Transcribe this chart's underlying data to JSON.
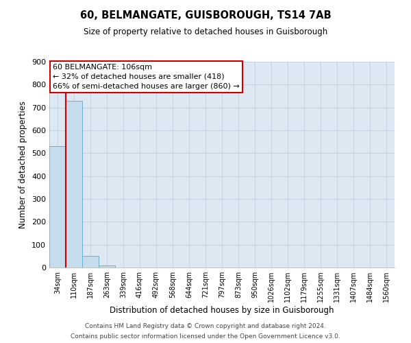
{
  "title": "60, BELMANGATE, GUISBOROUGH, TS14 7AB",
  "subtitle": "Size of property relative to detached houses in Guisborough",
  "xlabel": "Distribution of detached houses by size in Guisborough",
  "ylabel": "Number of detached properties",
  "bar_labels": [
    "34sqm",
    "110sqm",
    "187sqm",
    "263sqm",
    "339sqm",
    "416sqm",
    "492sqm",
    "568sqm",
    "644sqm",
    "721sqm",
    "797sqm",
    "873sqm",
    "950sqm",
    "1026sqm",
    "1102sqm",
    "1179sqm",
    "1255sqm",
    "1331sqm",
    "1407sqm",
    "1484sqm",
    "1560sqm"
  ],
  "bar_values": [
    530,
    728,
    50,
    10,
    0,
    0,
    0,
    0,
    0,
    0,
    0,
    0,
    0,
    0,
    0,
    0,
    0,
    0,
    0,
    0,
    0
  ],
  "bar_color": "#c5dced",
  "bar_edge_color": "#6aaed6",
  "ylim": [
    0,
    900
  ],
  "yticks": [
    0,
    100,
    200,
    300,
    400,
    500,
    600,
    700,
    800,
    900
  ],
  "property_line_color": "#cc0000",
  "annotation_title": "60 BELMANGATE: 106sqm",
  "annotation_line1": "← 32% of detached houses are smaller (418)",
  "annotation_line2": "66% of semi-detached houses are larger (860) →",
  "annotation_box_color": "#cc0000",
  "footer_line1": "Contains HM Land Registry data © Crown copyright and database right 2024.",
  "footer_line2": "Contains public sector information licensed under the Open Government Licence v3.0.",
  "background_color": "#ffffff",
  "axes_bg_color": "#dde8f2",
  "grid_color": "#c0cfe0"
}
